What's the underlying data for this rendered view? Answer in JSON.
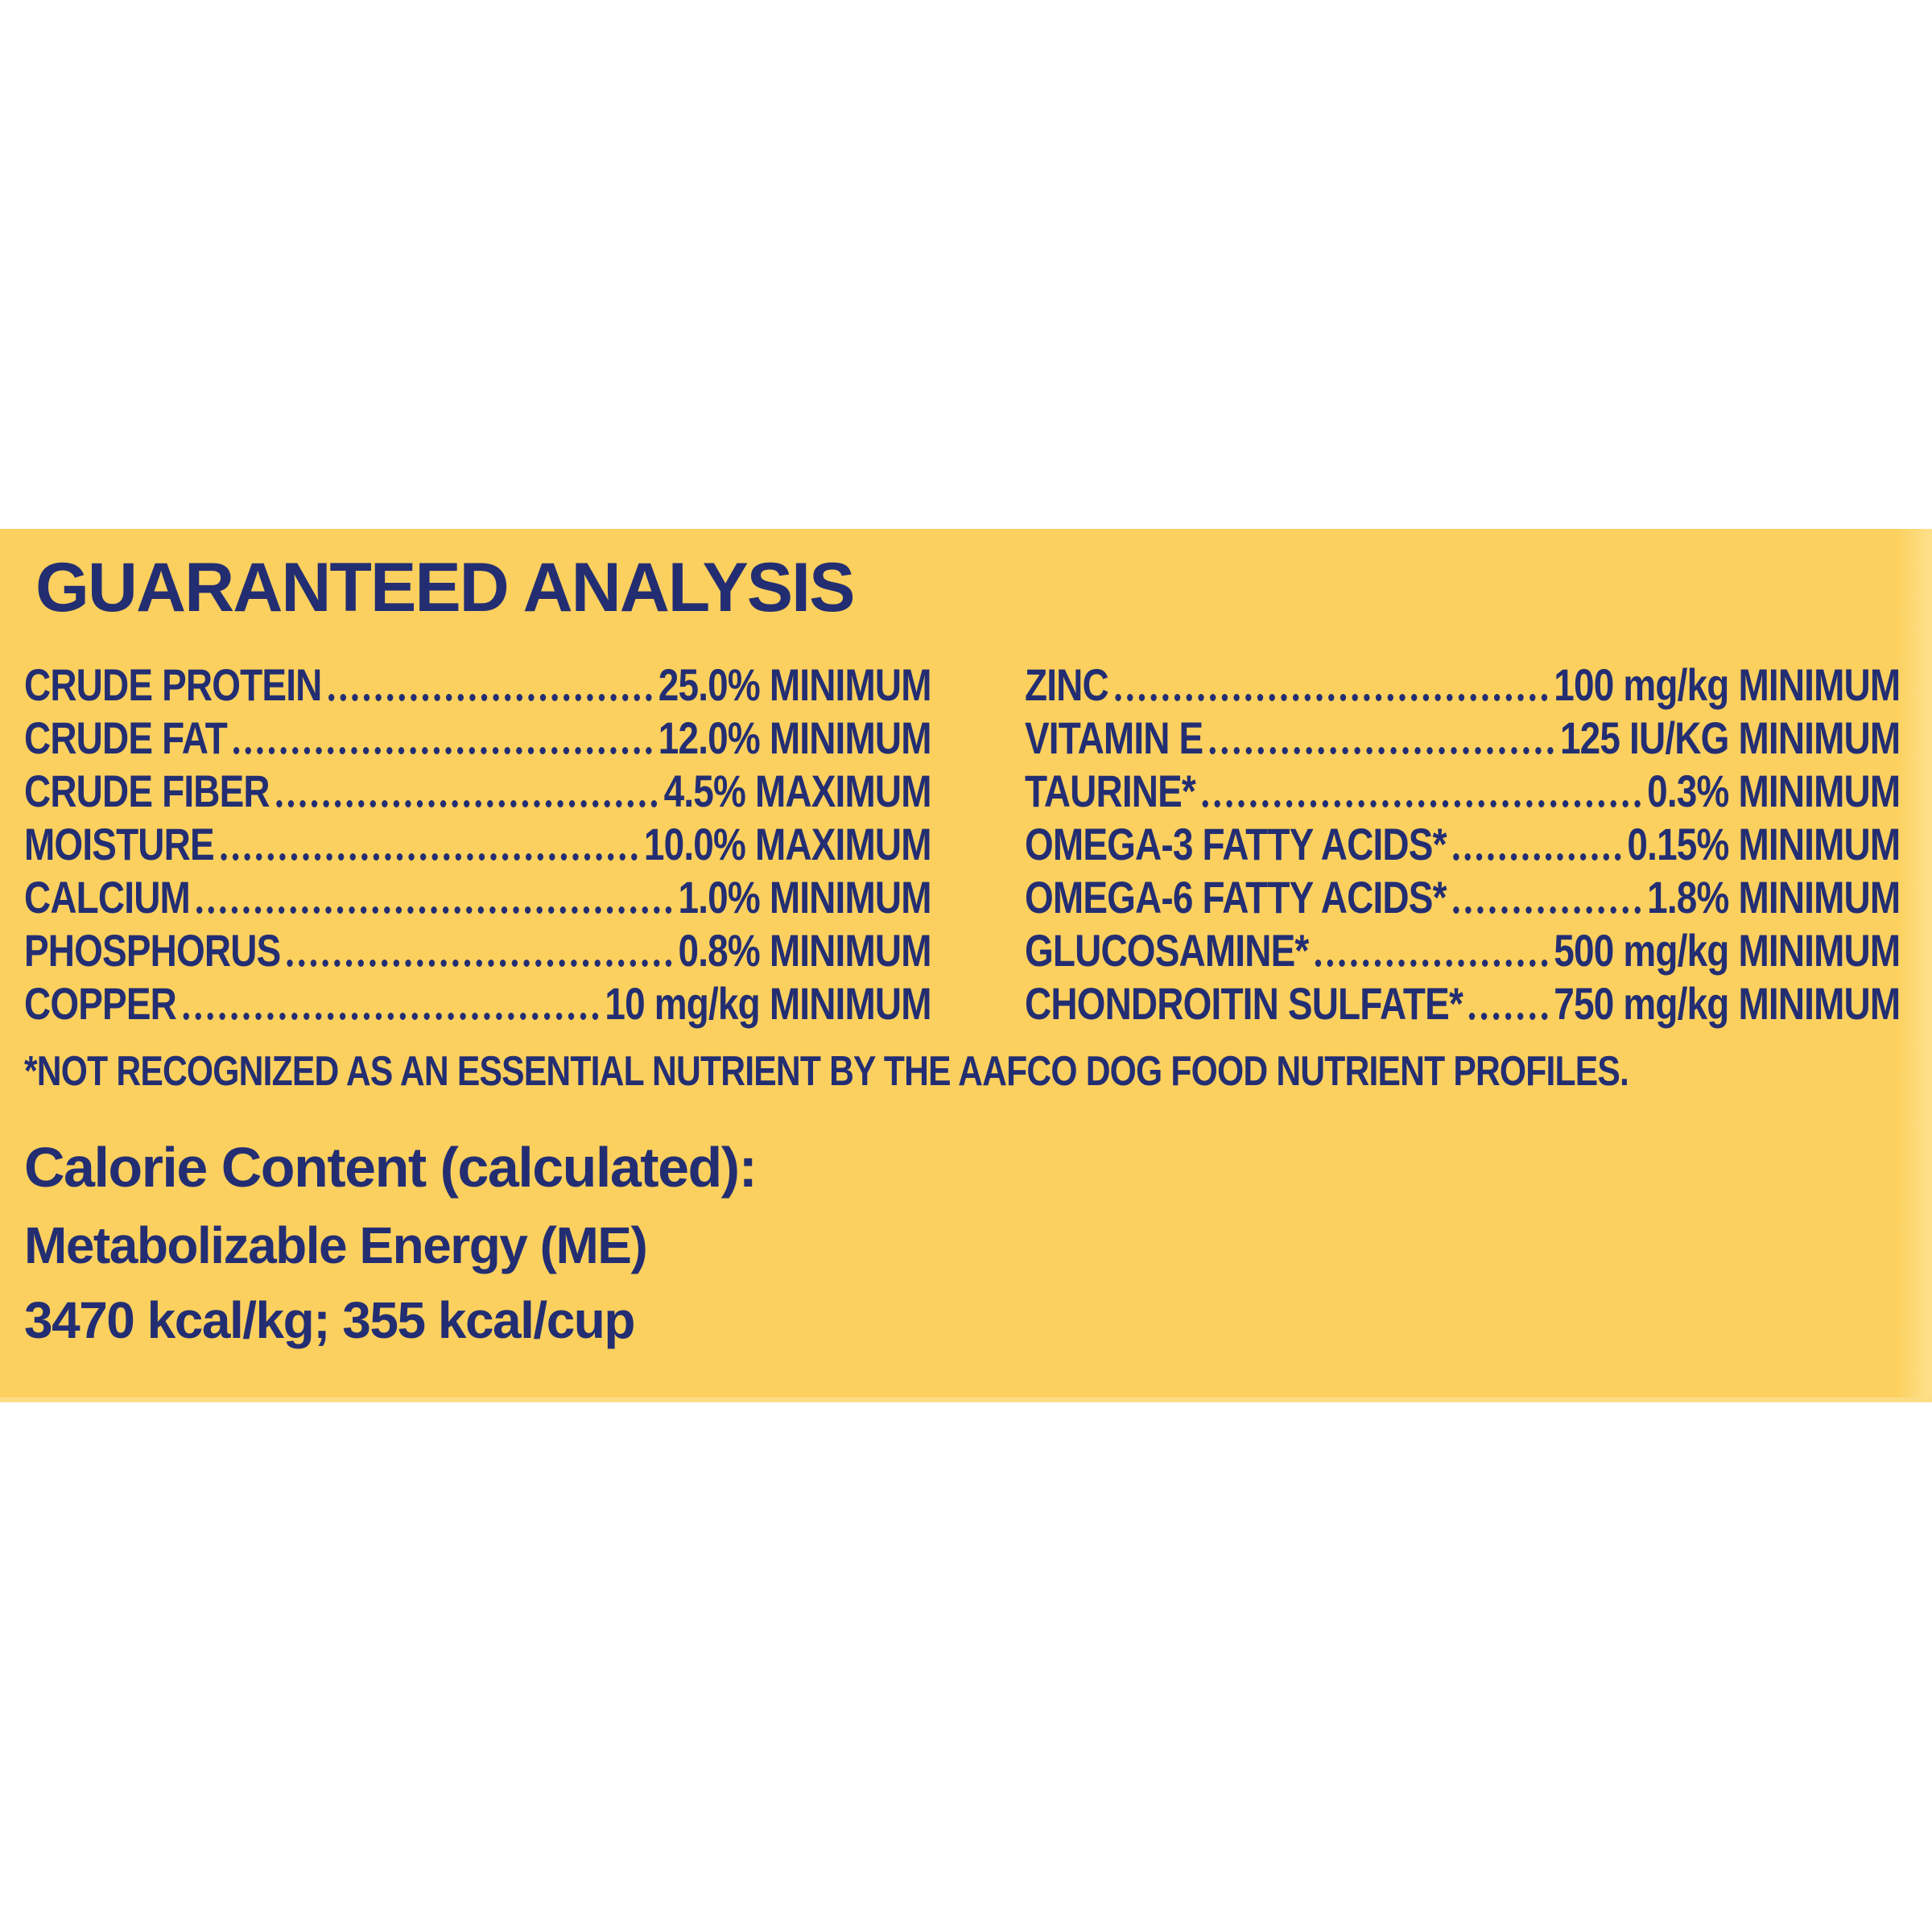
{
  "theme": {
    "background_yellow": "#FCD05E",
    "edge_yellow": "#FDDC86",
    "text_navy": "#232E72",
    "page_white": "#FFFFFF"
  },
  "panel": {
    "title": "GUARANTEED ANALYSIS",
    "analysis": {
      "left": [
        {
          "label": "CRUDE PROTEIN",
          "value": "25.0% MINIMUM"
        },
        {
          "label": "CRUDE FAT",
          "value": "12.0% MINIMUM"
        },
        {
          "label": "CRUDE FIBER",
          "value": "4.5% MAXIMUM"
        },
        {
          "label": "MOISTURE",
          "value": "10.0% MAXIMUM"
        },
        {
          "label": "CALCIUM",
          "value": "1.0% MINIMUM"
        },
        {
          "label": "PHOSPHORUS",
          "value": "0.8% MINIMUM"
        },
        {
          "label": "COPPER",
          "value": "10 mg/kg MINIMUM"
        }
      ],
      "right": [
        {
          "label": "ZINC",
          "value": "100 mg/kg MINIMUM"
        },
        {
          "label": "VITAMIN E",
          "value": "125 IU/KG MINIMUM"
        },
        {
          "label": "TAURINE*",
          "value": "0.3% MINIMUM"
        },
        {
          "label": "OMEGA-3 FATTY ACIDS*",
          "value": "0.15% MINIMUM"
        },
        {
          "label": "OMEGA-6 FATTY ACIDS*",
          "value": "1.8% MINIMUM"
        },
        {
          "label": "GLUCOSAMINE*",
          "value": "500 mg/kg MINIMUM"
        },
        {
          "label": "CHONDROITIN SULFATE*",
          "value": "750 mg/kg MINIMUM"
        }
      ]
    },
    "footnote": "*NOT RECOGNIZED AS AN ESSENTIAL NUTRIENT BY THE AAFCO DOG FOOD NUTRIENT PROFILES.",
    "calorie": {
      "heading": "Calorie Content (calculated):",
      "line1": "Metabolizable Energy (ME)",
      "line2": "3470 kcal/kg; 355 kcal/cup"
    }
  }
}
